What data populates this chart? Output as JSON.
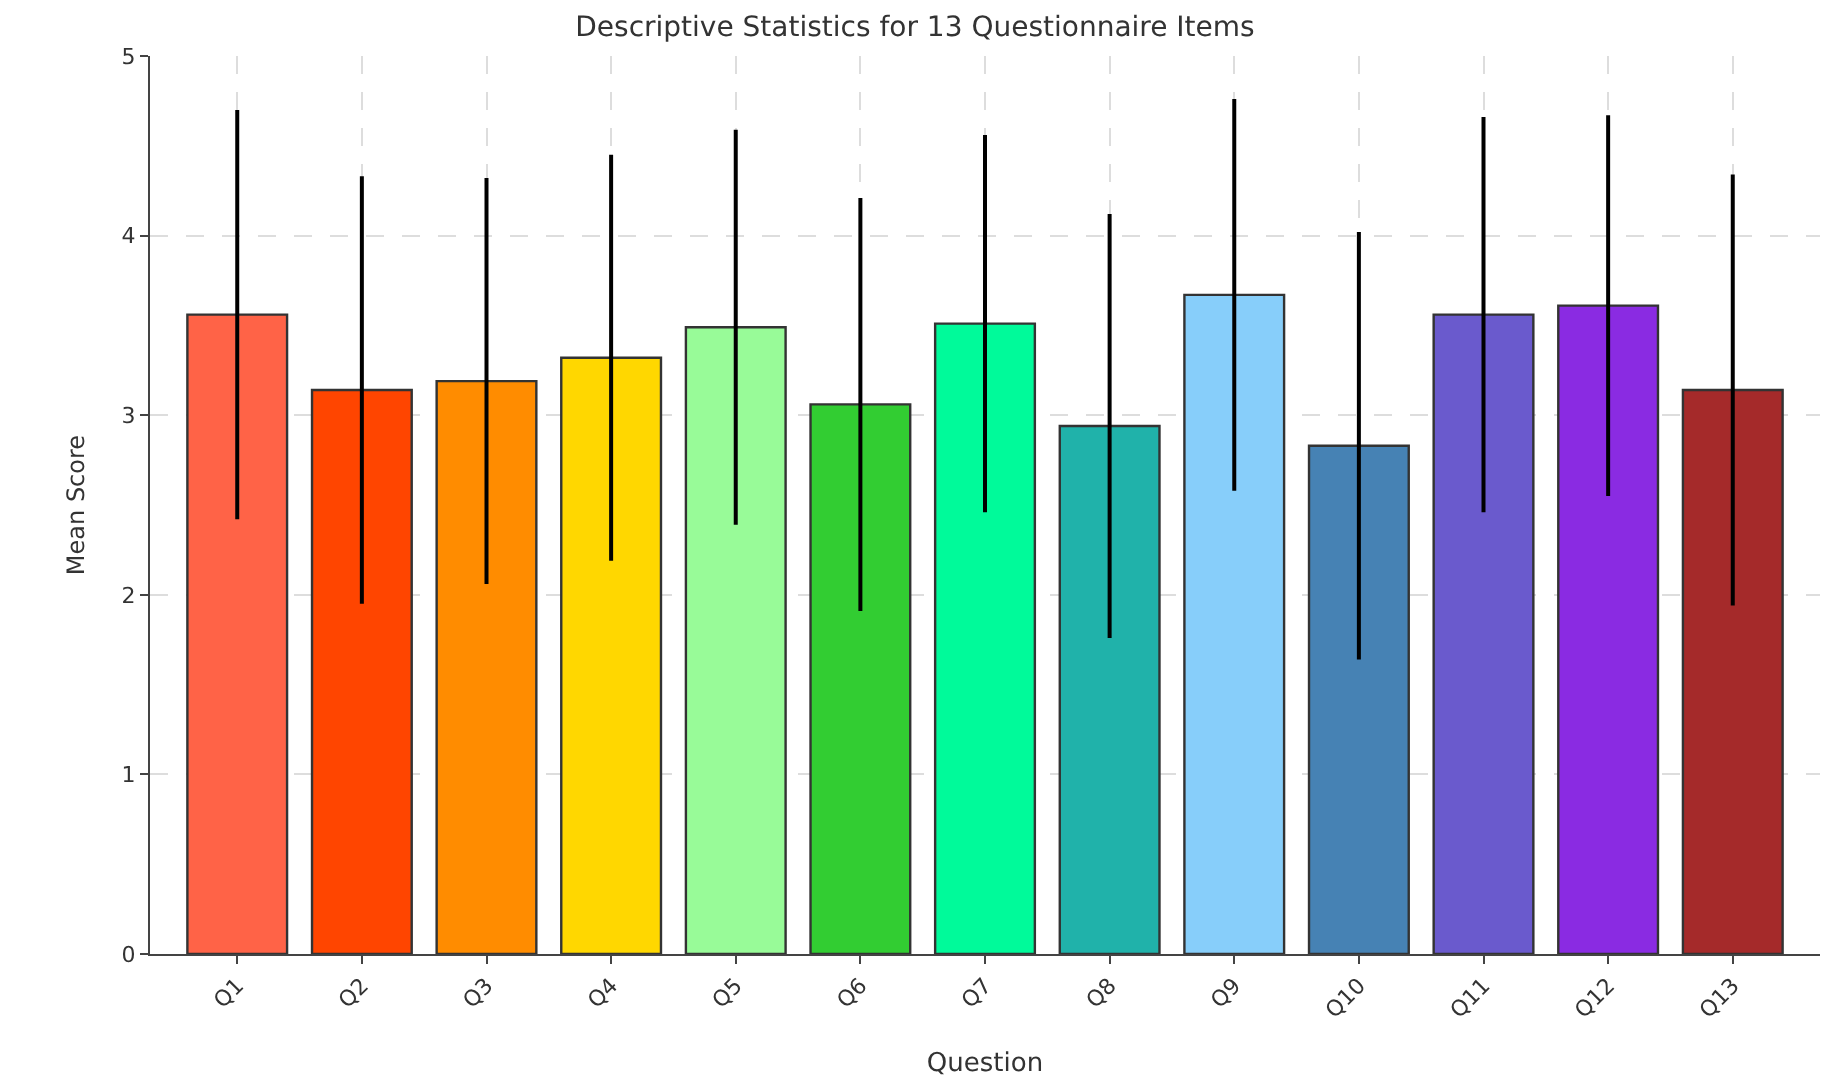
{
  "chart_data": {
    "type": "bar",
    "title": "Descriptive Statistics for 13 Questionnaire Items",
    "xlabel": "Question",
    "ylabel": "Mean Score",
    "categories": [
      "Q1",
      "Q2",
      "Q3",
      "Q4",
      "Q5",
      "Q6",
      "Q7",
      "Q8",
      "Q9",
      "Q10",
      "Q11",
      "Q12",
      "Q13"
    ],
    "values": [
      3.56,
      3.14,
      3.19,
      3.32,
      3.49,
      3.06,
      3.51,
      2.94,
      3.67,
      2.83,
      3.56,
      3.61,
      3.14
    ],
    "errors": [
      1.14,
      1.19,
      1.13,
      1.13,
      1.1,
      1.15,
      1.05,
      1.18,
      1.09,
      1.19,
      1.1,
      1.06,
      1.2
    ],
    "colors": [
      "#ff6347",
      "#ff4500",
      "#ff8c00",
      "#ffd700",
      "#98fb98",
      "#32cd32",
      "#00fa9a",
      "#20b2aa",
      "#87cefa",
      "#4682b4",
      "#6a5acd",
      "#8a2be2",
      "#a52a2a"
    ],
    "ylim": [
      0,
      5
    ],
    "yticks": [
      0,
      1,
      2,
      3,
      4,
      5
    ],
    "grid": true
  }
}
